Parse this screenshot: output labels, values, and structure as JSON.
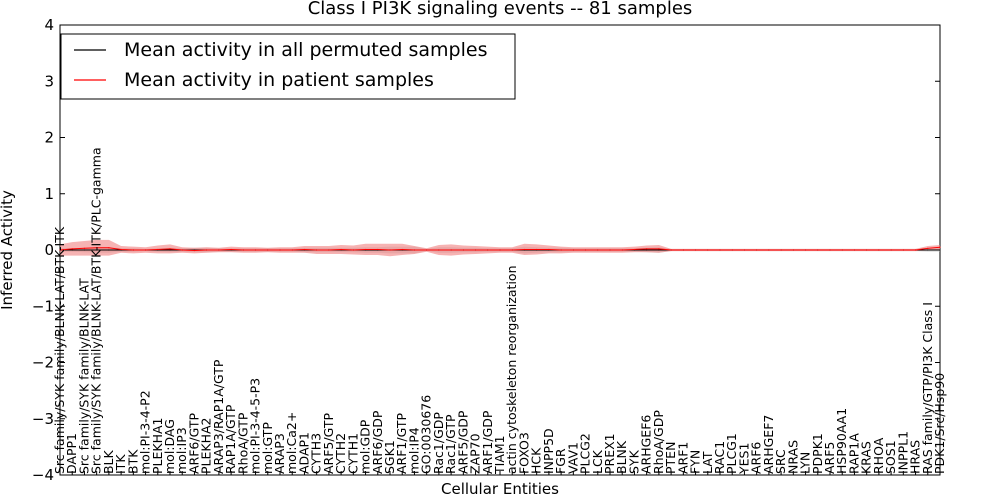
{
  "chart_data": {
    "type": "line",
    "title": "Class I PI3K signaling events -- 81 samples",
    "xlabel": "Cellular Entities",
    "ylabel": "Inferred Activity",
    "ylim": [
      -4,
      4
    ],
    "yticks": [
      -4,
      -3,
      -2,
      -1,
      0,
      1,
      2,
      3,
      4
    ],
    "legend_position": "top-left",
    "categories": [
      "Src family/SYK family/BLNK-LAT/BTK-ITK",
      "DAPP1",
      "Src family/SYK family/BLNK-LAT",
      "Src family/SYK family/BLNK-LAT/BTK-ITK/PLC-gamma",
      "BLK",
      "ITK",
      "BTK",
      "mol:PI-3-4-P2",
      "PLEKHA1",
      "mol:DAG",
      "mol:IP3",
      "ARF6/GTP",
      "PLEKHA2",
      "ARAP3/RAP1A/GTP",
      "RAP1A/GTP",
      "RhoA/GTP",
      "mol:PI-3-4-5-P3",
      "mol:GTP",
      "ARAP3",
      "mol:Ca2+",
      "ADAP1",
      "CYTH3",
      "ARF5/GTP",
      "CYTH2",
      "CYTH1",
      "mol:GDP",
      "ARF6/GDP",
      "SGK1",
      "ARF1/GTP",
      "mol:IP4",
      "GO:0030676",
      "Rac1/GDP",
      "Rac1/GTP",
      "ARF5/GDP",
      "ZAP70",
      "ARF1/GDP",
      "TIAM1",
      "actin cytoskeleton reorganization",
      "FOXO3",
      "HCK",
      "INPP5D",
      "FGR",
      "VAV1",
      "PLCG2",
      "LCK",
      "PREX1",
      "BLNK",
      "SYK",
      "ARHGEF6",
      "RhoA/GDP",
      "PTEN",
      "ARF1",
      "FYN",
      "LAT",
      "RAC1",
      "PLCG1",
      "YES1",
      "ARF6",
      "ARHGEF7",
      "SRC",
      "NRAS",
      "LYN",
      "PDPK1",
      "ARF5",
      "HSP90AA1",
      "RAP1A",
      "KRAS",
      "RHOA",
      "SOS1",
      "INPPL1",
      "HRAS",
      "RAS family/GTP/PI3K Class I",
      "PDK1/Src/Hsp90"
    ],
    "series": [
      {
        "name": "Mean activity in all permuted samples",
        "color": "#000000",
        "band_color": "#bbbbbb",
        "values": [
          0.0,
          0.0,
          0.0,
          0.0,
          0.0,
          0.0,
          0.0,
          0.0,
          0.0,
          0.0,
          0.0,
          0.0,
          0.0,
          0.0,
          0.0,
          0.0,
          0.0,
          0.0,
          0.0,
          0.0,
          0.0,
          0.0,
          0.0,
          0.0,
          0.0,
          0.0,
          0.0,
          0.0,
          0.0,
          0.0,
          0.0,
          0.0,
          0.0,
          0.0,
          0.0,
          0.0,
          0.0,
          0.0,
          0.0,
          0.0,
          0.0,
          0.0,
          0.0,
          0.0,
          0.0,
          0.0,
          0.0,
          0.0,
          0.0,
          0.0,
          0.0,
          0.0,
          0.0,
          0.0,
          0.0,
          0.0,
          0.0,
          0.0,
          0.0,
          0.0,
          0.0,
          0.0,
          0.0,
          0.0,
          0.0,
          0.0,
          0.0,
          0.0,
          0.0,
          0.0,
          0.0,
          0.0,
          0.0
        ],
        "band": [
          0.03,
          0.03,
          0.04,
          0.05,
          0.05,
          0.03,
          0.03,
          0.02,
          0.03,
          0.04,
          0.03,
          0.04,
          0.04,
          0.03,
          0.03,
          0.03,
          0.03,
          0.03,
          0.03,
          0.03,
          0.04,
          0.04,
          0.04,
          0.04,
          0.04,
          0.05,
          0.05,
          0.06,
          0.06,
          0.06,
          0.02,
          0.05,
          0.05,
          0.04,
          0.04,
          0.03,
          0.03,
          0.03,
          0.06,
          0.05,
          0.04,
          0.04,
          0.03,
          0.03,
          0.03,
          0.03,
          0.03,
          0.03,
          0.04,
          0.05,
          0.02,
          0.02,
          0.02,
          0.02,
          0.02,
          0.02,
          0.02,
          0.02,
          0.02,
          0.02,
          0.02,
          0.02,
          0.02,
          0.02,
          0.02,
          0.02,
          0.02,
          0.02,
          0.02,
          0.02,
          0.02,
          0.03,
          0.03
        ]
      },
      {
        "name": "Mean activity in patient samples",
        "color": "#ff0000",
        "band_color": "#f08080",
        "values": [
          0.0,
          0.02,
          0.03,
          0.04,
          0.04,
          0.01,
          0.0,
          0.0,
          0.01,
          0.02,
          0.0,
          -0.01,
          0.0,
          0.0,
          0.01,
          0.0,
          0.0,
          0.0,
          0.0,
          0.0,
          0.01,
          0.0,
          0.0,
          0.01,
          0.0,
          0.01,
          0.01,
          0.0,
          0.01,
          0.0,
          0.0,
          0.0,
          0.0,
          0.0,
          0.0,
          0.0,
          0.0,
          0.0,
          0.01,
          0.01,
          0.01,
          0.0,
          0.0,
          0.0,
          0.0,
          0.0,
          0.0,
          0.01,
          0.02,
          0.02,
          0.0,
          0.0,
          0.0,
          0.0,
          0.0,
          0.0,
          0.0,
          0.0,
          0.0,
          0.0,
          0.0,
          0.0,
          0.0,
          0.0,
          0.0,
          0.0,
          0.0,
          0.0,
          0.0,
          0.0,
          0.0,
          0.03,
          0.05
        ],
        "band": [
          0.1,
          0.12,
          0.13,
          0.14,
          0.14,
          0.06,
          0.06,
          0.05,
          0.07,
          0.08,
          0.05,
          0.05,
          0.05,
          0.04,
          0.05,
          0.05,
          0.05,
          0.04,
          0.05,
          0.05,
          0.06,
          0.07,
          0.07,
          0.08,
          0.08,
          0.1,
          0.1,
          0.11,
          0.1,
          0.07,
          0.03,
          0.09,
          0.1,
          0.08,
          0.07,
          0.06,
          0.05,
          0.05,
          0.1,
          0.09,
          0.07,
          0.06,
          0.05,
          0.05,
          0.05,
          0.05,
          0.05,
          0.05,
          0.06,
          0.07,
          0.02,
          0.02,
          0.02,
          0.02,
          0.02,
          0.02,
          0.02,
          0.02,
          0.02,
          0.02,
          0.02,
          0.02,
          0.02,
          0.02,
          0.02,
          0.02,
          0.02,
          0.02,
          0.02,
          0.02,
          0.02,
          0.04,
          0.04
        ]
      }
    ]
  }
}
